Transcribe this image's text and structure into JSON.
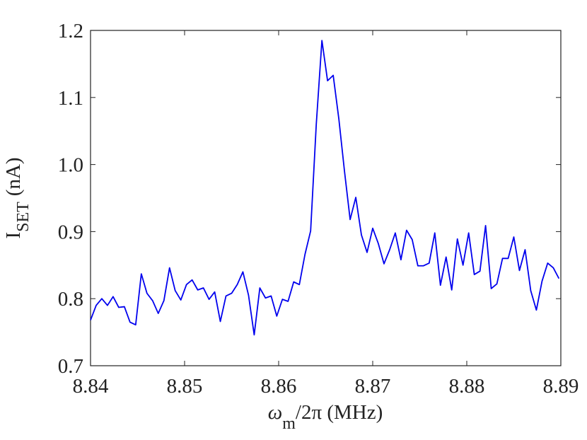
{
  "chart_data": {
    "type": "line",
    "y_label": {
      "main": "I",
      "sub": "SET",
      "unit": "(nA)"
    },
    "x_label": {
      "main": "ω",
      "sub": "m",
      "rest": "/2π (MHz)"
    },
    "x": [
      8.84,
      8.8406,
      8.8412,
      8.8418,
      8.8424,
      8.843,
      8.8436,
      8.8442,
      8.8448,
      8.8454,
      8.846,
      8.8466,
      8.8472,
      8.8478,
      8.8484,
      8.849,
      8.8496,
      8.8502,
      8.8508,
      8.8514,
      8.852,
      8.8526,
      8.8532,
      8.8538,
      8.8544,
      8.855,
      8.8556,
      8.8562,
      8.8568,
      8.8574,
      8.858,
      8.8586,
      8.8592,
      8.8598,
      8.8604,
      8.861,
      8.8616,
      8.8622,
      8.8628,
      8.8634,
      8.864,
      8.8646,
      8.8652,
      8.8658,
      8.8664,
      8.867,
      8.8676,
      8.8682,
      8.8688,
      8.8694,
      8.87,
      8.8706,
      8.8712,
      8.8718,
      8.8724,
      8.873,
      8.8736,
      8.8742,
      8.8748,
      8.8754,
      8.876,
      8.8766,
      8.8772,
      8.8778,
      8.8784,
      8.879,
      8.8796,
      8.8802,
      8.8808,
      8.8814,
      8.882,
      8.8826,
      8.8832,
      8.8838,
      8.8844,
      8.885,
      8.8856,
      8.8862,
      8.8868,
      8.8874,
      8.888,
      8.8886,
      8.8892,
      8.8898
    ],
    "series": [
      {
        "color": "#0000ee",
        "values": [
          0.768,
          0.79,
          0.8,
          0.79,
          0.803,
          0.787,
          0.788,
          0.765,
          0.761,
          0.837,
          0.808,
          0.797,
          0.778,
          0.797,
          0.846,
          0.812,
          0.798,
          0.821,
          0.828,
          0.813,
          0.816,
          0.799,
          0.81,
          0.766,
          0.804,
          0.808,
          0.821,
          0.84,
          0.805,
          0.746,
          0.816,
          0.801,
          0.804,
          0.774,
          0.799,
          0.796,
          0.825,
          0.821,
          0.866,
          0.901,
          1.06,
          1.185,
          1.125,
          1.133,
          1.068,
          0.99,
          0.918,
          0.951,
          0.895,
          0.869,
          0.905,
          0.882,
          0.852,
          0.873,
          0.898,
          0.858,
          0.902,
          0.888,
          0.849,
          0.849,
          0.853,
          0.898,
          0.82,
          0.862,
          0.813,
          0.889,
          0.85,
          0.898,
          0.836,
          0.841,
          0.909,
          0.815,
          0.822,
          0.86,
          0.86,
          0.892,
          0.842,
          0.873,
          0.812,
          0.783,
          0.826,
          0.853,
          0.846,
          0.83
        ]
      }
    ],
    "xlim": [
      8.84,
      8.89
    ],
    "xticks": [
      8.84,
      8.85,
      8.86,
      8.87,
      8.88,
      8.89
    ],
    "ylim": [
      0.7,
      1.2
    ],
    "yticks": [
      0.7,
      0.8,
      0.9,
      {
        "value": 1,
        "label": "1.0"
      },
      1.1,
      1.2
    ]
  }
}
